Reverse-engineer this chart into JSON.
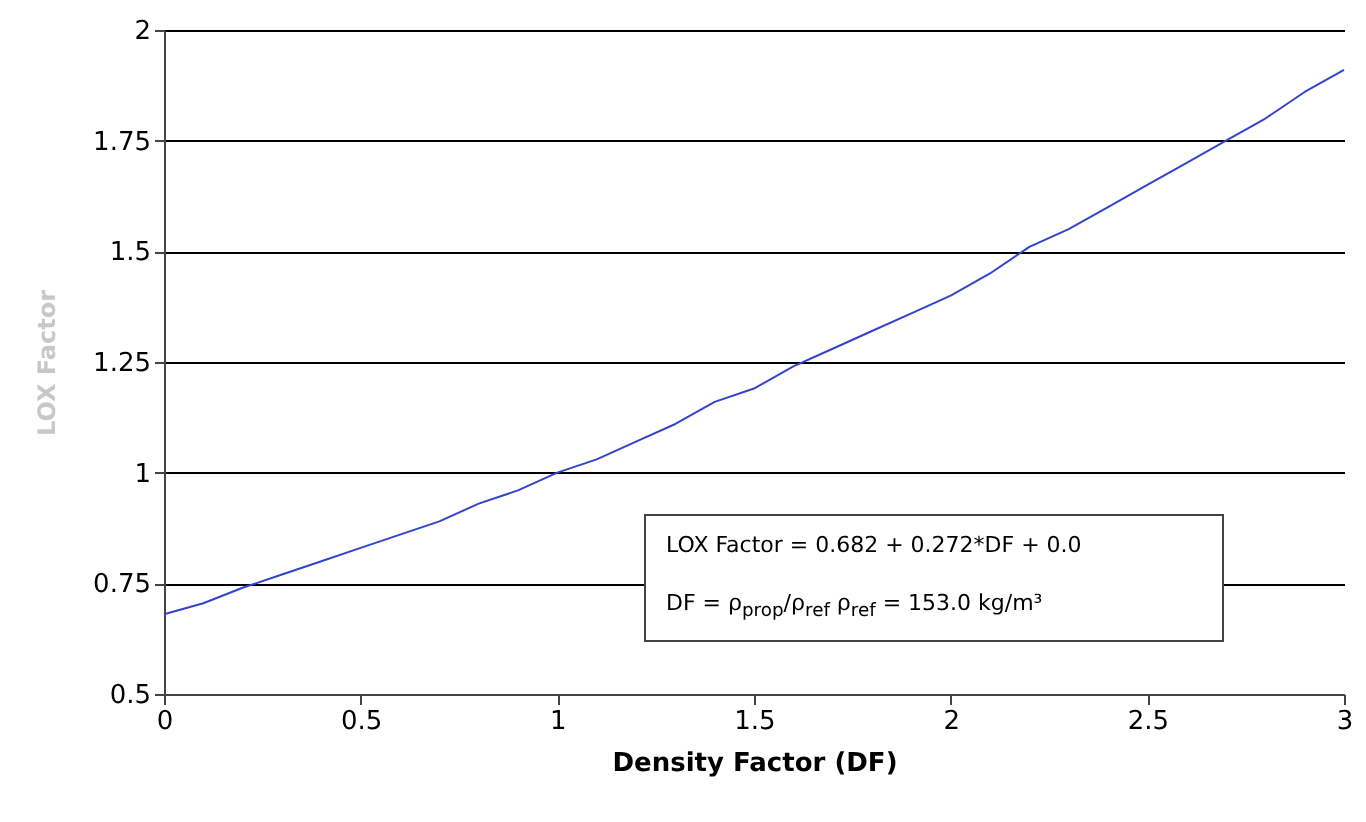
{
  "chart_data": {
    "type": "line",
    "xlabel": "Density  Factor  (DF)",
    "ylabel": "LOX Factor",
    "x": [
      0,
      0.1,
      0.2,
      0.3,
      0.4,
      0.5,
      0.6,
      0.7,
      0.8,
      0.9,
      1.0,
      1.1,
      1.2,
      1.3,
      1.4,
      1.5,
      1.6,
      1.7,
      1.8,
      1.9,
      2.0,
      2.1,
      2.2,
      2.3,
      2.4,
      2.5,
      2.6,
      2.7,
      2.8,
      2.9,
      3.0
    ],
    "series": [
      {
        "color": "#3344cc",
        "values": [
          0.68,
          0.705,
          0.74,
          0.77,
          0.8,
          0.83,
          0.86,
          0.89,
          0.93,
          0.96,
          1.0,
          1.03,
          1.07,
          1.11,
          1.16,
          1.19,
          1.24,
          1.28,
          1.32,
          1.36,
          1.4,
          1.45,
          1.51,
          1.55,
          1.6,
          1.65,
          1.7,
          1.75,
          1.8,
          1.86,
          1.91
        ]
      }
    ],
    "xlim": [
      0,
      3
    ],
    "xticks": [
      0,
      0.5,
      1,
      1.5,
      2,
      2.5,
      3
    ],
    "ylim": [
      0.5,
      2
    ],
    "yticks": [
      0.5,
      0.75,
      1,
      1.25,
      1.5,
      1.75,
      2
    ],
    "grid": "y",
    "marker": "none",
    "line_style": "solid",
    "annotations": [
      "LOX Factor = 0.682 + 0.272*DF + 0.0",
      "DF = ρ$_{prop}$/ρ$_{ref}$   ρ$_{ref}$ = 153.0 kg/m³"
    ]
  }
}
